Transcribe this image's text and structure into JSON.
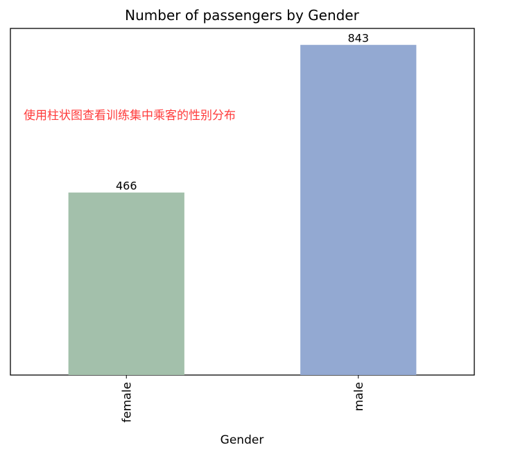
{
  "chart_data": {
    "type": "bar",
    "title": "Number of passengers by Gender",
    "xlabel": "Gender",
    "ylabel": "",
    "categories": [
      "female",
      "male"
    ],
    "values": [
      466,
      843
    ],
    "value_labels": [
      "466",
      "843"
    ],
    "bar_colors": [
      "#a3c0ab",
      "#93a9d2"
    ],
    "ylim": [
      0,
      885
    ],
    "grid": false,
    "y_ticks_visible": false,
    "annotation": {
      "text": "使用柱状图查看训练集中乘客的性别分布",
      "color": "#ff3b3b"
    }
  }
}
